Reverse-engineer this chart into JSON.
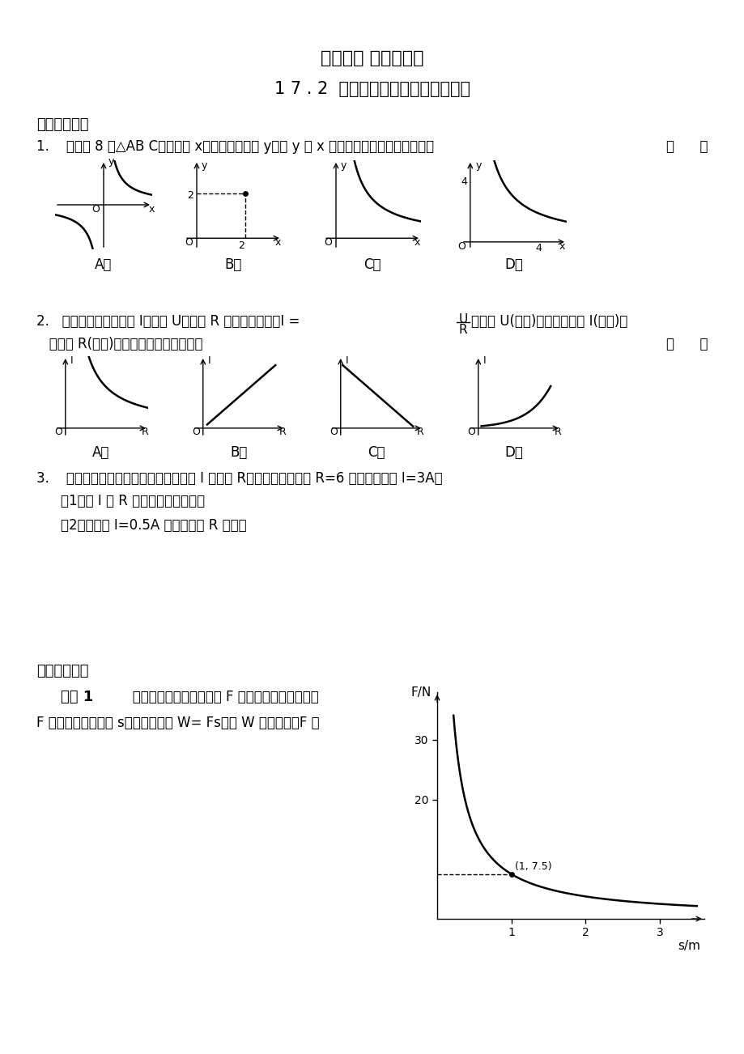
{
  "title1": "第十七章 反比例函数",
  "title2": "1 7 . 2  实际问题与反比例函数（四）",
  "section1": "《自主领悟》",
  "q1_text": "1.    面积为 8 的△AB C，一边长 x，这边上的高为 y，则 y 与 x 的变化规律用图象表示大致是",
  "q1_bracket": "（      ）",
  "q1_labels": [
    "A．",
    "B．",
    "C．",
    "D．"
  ],
  "q2_line1a": "2.   在闭合电路中，电流 I，电压 U，电阴 R 之间的关系为：I =",
  "q2_line1b": "，电压 U(伏特)一定时，电流 I(安培)关",
  "q2_line2": "   于电阴 R(欧姆)的函数关系的大致图象是",
  "q2_bracket": "（      ）",
  "q2_labels": [
    "A．",
    "B．",
    "C．",
    "D．"
  ],
  "q3_text": "3.    在某一电路中，保持电压不变，电流 I 和电阴 R成反比例，当电阴 R=6 欧姆时，电流 I=3A．",
  "q3_sub1": "（1）求 I 与 R 之间的函数关系式；",
  "q3_sub2": "（2）当电流 I=0.5A 时，求电阴 R 的値．",
  "section2": "《自主探究》",
  "p1_bold": "问题 1",
  "p1_text": "   由物理学知识知道，在力 F 的作用下，物体会在力",
  "p1_text2": "F 的方向上发生位移 s，力所做的功 W= Fs．当 W 为定値时，F 与",
  "bg_color": "#ffffff"
}
